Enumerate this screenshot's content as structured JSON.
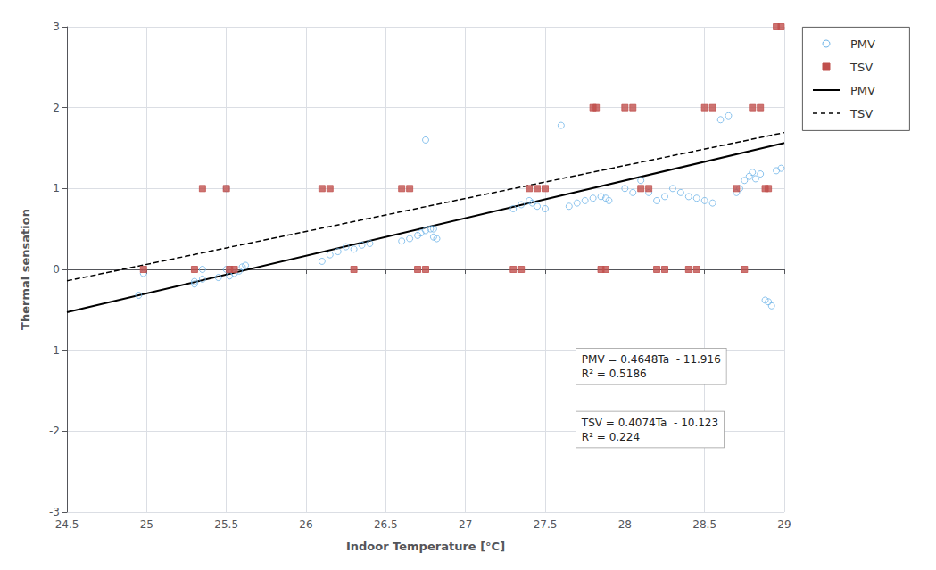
{
  "chart_data": {
    "type": "scatter",
    "xlabel": "Indoor Temperature [°C]",
    "ylabel": "Thermal sensation",
    "xlim": [
      24.5,
      29.0
    ],
    "ylim": [
      -3.0,
      3.0
    ],
    "xticks": [
      24.5,
      25.0,
      25.5,
      26.0,
      26.5,
      27.0,
      27.5,
      28.0,
      28.5,
      29.0
    ],
    "yticks": [
      -3.0,
      -2.0,
      -1.0,
      0.0,
      1.0,
      2.0,
      3.0
    ],
    "grid": true,
    "legend": "right",
    "series": [
      {
        "name": "PMV",
        "type": "scatter",
        "marker": "circle",
        "color": "#6EB4E8",
        "x": [
          24.95,
          24.98,
          25.3,
          25.35,
          25.45,
          25.5,
          25.52,
          25.55,
          25.58,
          25.6,
          25.62,
          25.3,
          25.35,
          25.5,
          25.52,
          26.1,
          26.15,
          26.2,
          26.25,
          26.3,
          26.35,
          26.4,
          26.6,
          26.65,
          26.7,
          26.72,
          26.75,
          26.78,
          26.8,
          26.82,
          26.75,
          26.8,
          27.3,
          27.35,
          27.4,
          27.42,
          27.45,
          27.5,
          27.6,
          27.65,
          27.7,
          27.75,
          27.8,
          27.85,
          27.88,
          27.9,
          28.0,
          28.05,
          28.1,
          28.15,
          28.2,
          28.25,
          28.3,
          28.35,
          28.4,
          28.45,
          28.5,
          28.55,
          28.6,
          28.65,
          28.7,
          28.72,
          28.75,
          28.78,
          28.8,
          28.82,
          28.85,
          28.88,
          28.9,
          28.92,
          28.95,
          28.98
        ],
        "values": [
          -0.32,
          -0.05,
          -0.15,
          -0.12,
          -0.1,
          0.0,
          -0.08,
          -0.05,
          -0.02,
          0.03,
          0.05,
          -0.18,
          0.0,
          1.0,
          0.0,
          0.1,
          0.18,
          0.22,
          0.28,
          0.25,
          0.3,
          0.32,
          0.35,
          0.38,
          0.42,
          0.45,
          0.48,
          0.5,
          0.4,
          0.38,
          1.6,
          0.5,
          0.75,
          0.8,
          0.85,
          0.82,
          0.78,
          0.75,
          1.78,
          0.78,
          0.82,
          0.85,
          0.88,
          0.9,
          0.88,
          0.85,
          1.0,
          0.95,
          1.1,
          0.95,
          0.85,
          0.9,
          1.0,
          0.95,
          0.9,
          0.88,
          0.85,
          0.82,
          1.85,
          1.9,
          0.95,
          1.0,
          1.1,
          1.15,
          1.2,
          1.12,
          1.18,
          -0.38,
          -0.4,
          -0.45,
          1.22,
          1.25
        ]
      },
      {
        "name": "TSV",
        "type": "scatter",
        "marker": "square",
        "color": "#C0504D",
        "x": [
          24.98,
          25.3,
          25.35,
          25.5,
          25.52,
          25.55,
          26.1,
          26.15,
          26.3,
          26.6,
          26.65,
          26.7,
          26.75,
          27.3,
          27.35,
          27.4,
          27.45,
          27.5,
          27.8,
          27.82,
          27.85,
          27.88,
          28.0,
          28.05,
          28.1,
          28.15,
          28.2,
          28.25,
          28.4,
          28.45,
          28.5,
          28.55,
          28.7,
          28.75,
          28.8,
          28.85,
          28.88,
          28.9,
          28.95,
          28.98
        ],
        "values": [
          0.0,
          0.0,
          1.0,
          1.0,
          0.0,
          0.0,
          1.0,
          1.0,
          0.0,
          1.0,
          1.0,
          0.0,
          0.0,
          0.0,
          0.0,
          1.0,
          1.0,
          1.0,
          2.0,
          2.0,
          0.0,
          0.0,
          2.0,
          2.0,
          1.0,
          1.0,
          0.0,
          0.0,
          0.0,
          0.0,
          2.0,
          2.0,
          1.0,
          0.0,
          2.0,
          2.0,
          1.0,
          1.0,
          3.0,
          3.0
        ]
      },
      {
        "name": "PMV",
        "type": "line",
        "line_style": "solid",
        "color": "#000000",
        "x": [
          24.5,
          29.0
        ],
        "values": [
          -0.5284,
          1.5632
        ]
      },
      {
        "name": "TSV",
        "type": "line",
        "line_style": "dashed",
        "color": "#000000",
        "x": [
          24.5,
          29.0
        ],
        "values": [
          -0.1417,
          1.6916
        ]
      }
    ],
    "annotations": [
      [
        "PMV = 0.4648Ta  - 11.916",
        "R² = 0.5186"
      ],
      [
        "TSV = 0.4074Ta  - 10.123",
        "R² = 0.224"
      ]
    ]
  }
}
